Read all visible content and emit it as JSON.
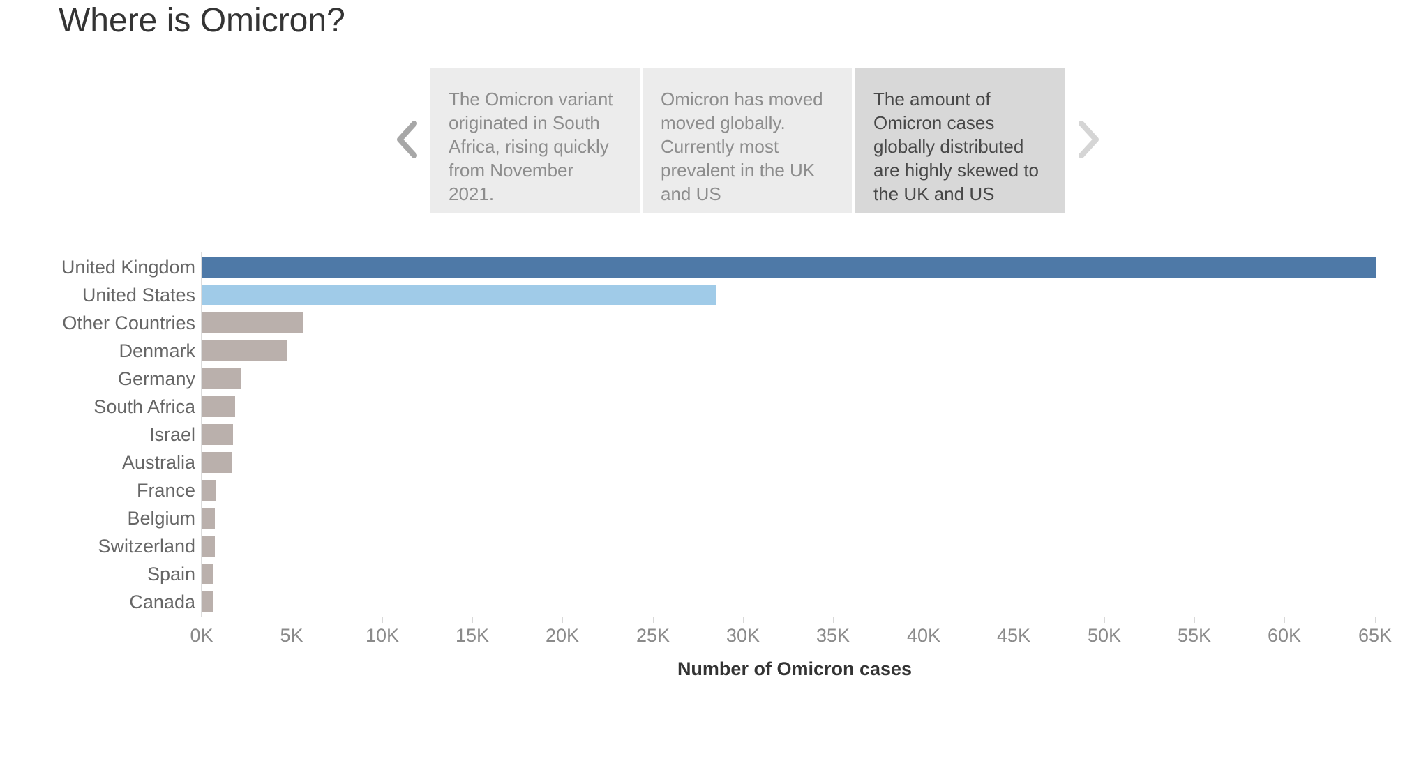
{
  "page": {
    "title": "Where is Omicron?"
  },
  "carousel": {
    "prev_label": "previous-story-point",
    "next_label": "next-story-point",
    "cards": [
      {
        "text": "The Omicron variant originated in South Africa, rising quickly from November 2021.",
        "selected": false
      },
      {
        "text": "Omicron has moved moved globally. Currently most prevalent in the UK and US",
        "selected": false
      },
      {
        "text": "The amount of Omicron cases globally distributed are highly skewed to the UK and US",
        "selected": true
      }
    ]
  },
  "chart_data": {
    "type": "bar",
    "orientation": "horizontal",
    "title": "Where is Omicron?",
    "xlabel": "Number of Omicron cases",
    "ylabel": "",
    "categories": [
      "United Kingdom",
      "United States",
      "Other Countries",
      "Denmark",
      "Germany",
      "South Africa",
      "Israel",
      "Australia",
      "France",
      "Belgium",
      "Switzerland",
      "Spain",
      "Canada"
    ],
    "values": [
      65100,
      28500,
      5600,
      4750,
      2200,
      1850,
      1750,
      1680,
      820,
      740,
      730,
      670,
      610
    ],
    "x_ticks": [
      "0K",
      "5K",
      "10K",
      "15K",
      "20K",
      "25K",
      "30K",
      "35K",
      "40K",
      "45K",
      "50K",
      "55K",
      "60K",
      "65K"
    ],
    "xlim": [
      0,
      65700
    ],
    "grid": false,
    "legend": false,
    "bar_color_overrides": {
      "United Kingdom": "#4e79a7",
      "United States": "#a0cbe8"
    },
    "default_bar_color": "#bab0ac"
  },
  "colors": {
    "card_bg": "#ececec",
    "card_bg_selected": "#d8d8d8",
    "card_text": "#8d8d8d",
    "card_text_selected": "#484848",
    "prev_chevron": "#a7a7a7",
    "next_chevron": "#d5d5d5",
    "label_text": "#666666",
    "tick_text": "#8a8a8a",
    "axis_title_text": "#333333"
  }
}
